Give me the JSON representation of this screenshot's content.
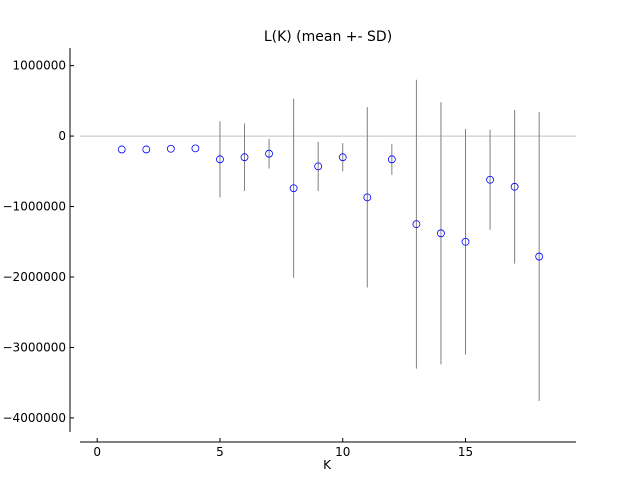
{
  "chart_data": {
    "type": "scatter",
    "title": "L(K) (mean +- SD)",
    "xlabel": "K",
    "ylabel": "",
    "xlim": [
      -0.7,
      19.5
    ],
    "ylim": [
      -4200000,
      1250000
    ],
    "xticks": [
      0,
      5,
      10,
      15
    ],
    "yticks": [
      1000000,
      0,
      -1000000,
      -2000000,
      -3000000,
      -4000000
    ],
    "xtick_labels": [
      "0",
      "5",
      "10",
      "15"
    ],
    "ytick_labels": [
      "1000000",
      "0",
      "−1000000",
      "−2000000",
      "−3000000",
      "−4000000"
    ],
    "zero_line": true,
    "grid": false,
    "series": [
      {
        "marker": "open-circle",
        "x": [
          1,
          2,
          3,
          4,
          5,
          6,
          7,
          8,
          9,
          10,
          11,
          12,
          13,
          14,
          15,
          16,
          17,
          18
        ],
        "mean": [
          -190000,
          -190000,
          -180000,
          -175000,
          -330000,
          -300000,
          -250000,
          -740000,
          -430000,
          -300000,
          -870000,
          -330000,
          -1250000,
          -1380000,
          -1500000,
          -620000,
          -720000,
          -1710000
        ],
        "sd": [
          0,
          0,
          0,
          0,
          540000,
          480000,
          210000,
          1270000,
          350000,
          200000,
          1280000,
          220000,
          2050000,
          1860000,
          1600000,
          710000,
          1090000,
          2050000
        ]
      }
    ],
    "colors": {
      "marker": "#0000ff",
      "error_bar": "#808080",
      "zero_line": "#c0c0c0",
      "axis": "#000000"
    }
  }
}
